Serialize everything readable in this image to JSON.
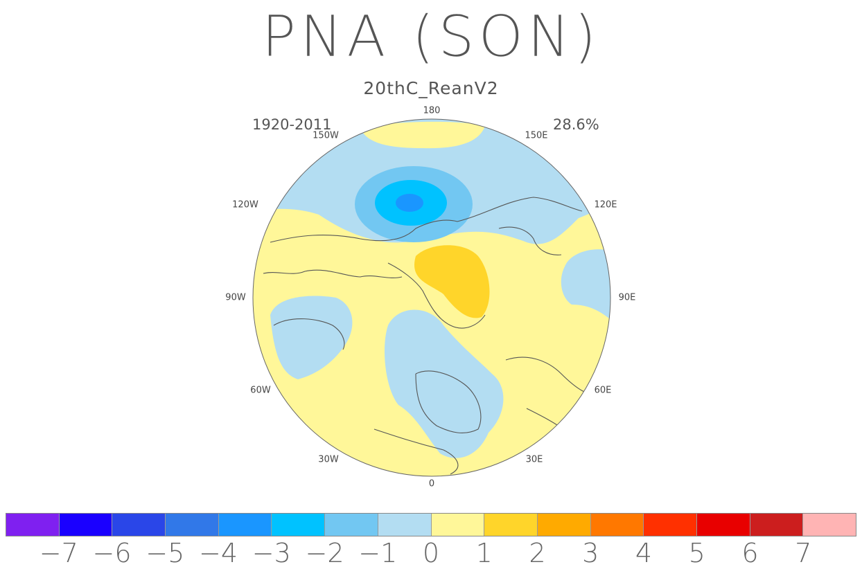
{
  "title": "PNA (SON)",
  "subtitle": "20thC_ReanV2",
  "period": "1920-2011",
  "variance": "28.6%",
  "longitude_labels": {
    "lon_180": "180",
    "lon_150w": "150W",
    "lon_150e": "150E",
    "lon_120w": "120W",
    "lon_120e": "120E",
    "lon_90w": "90W",
    "lon_90e": "90E",
    "lon_60w": "60W",
    "lon_60e": "60E",
    "lon_30w": "30W",
    "lon_30e": "30E",
    "lon_0": "0"
  },
  "colorbar": {
    "colors": [
      "#7f20f0",
      "#1a00ff",
      "#2a46e8",
      "#3178e8",
      "#1a96ff",
      "#00c2ff",
      "#72c7f2",
      "#b3ddf2",
      "#fff799",
      "#ffd52a",
      "#ffaa00",
      "#ff7800",
      "#ff3000",
      "#e80000",
      "#cc1e1e",
      "#ffb4b4"
    ],
    "labels": [
      "−7",
      "−6",
      "−5",
      "−4",
      "−3",
      "−2",
      "−1",
      "0",
      "1",
      "2",
      "3",
      "4",
      "5",
      "6",
      "7"
    ]
  },
  "map_fields": {
    "background_level": "1",
    "anomaly_regions": [
      {
        "name": "north-pacific-low",
        "level": "-1"
      },
      {
        "name": "north-pacific-low-core",
        "level": "-4"
      },
      {
        "name": "siberia-high",
        "level": "2"
      },
      {
        "name": "europe-low",
        "level": "-1"
      },
      {
        "name": "north-atlantic-low",
        "level": "-1"
      },
      {
        "name": "east-asia-low",
        "level": "-1"
      },
      {
        "name": "bering-high",
        "level": "1"
      }
    ]
  }
}
